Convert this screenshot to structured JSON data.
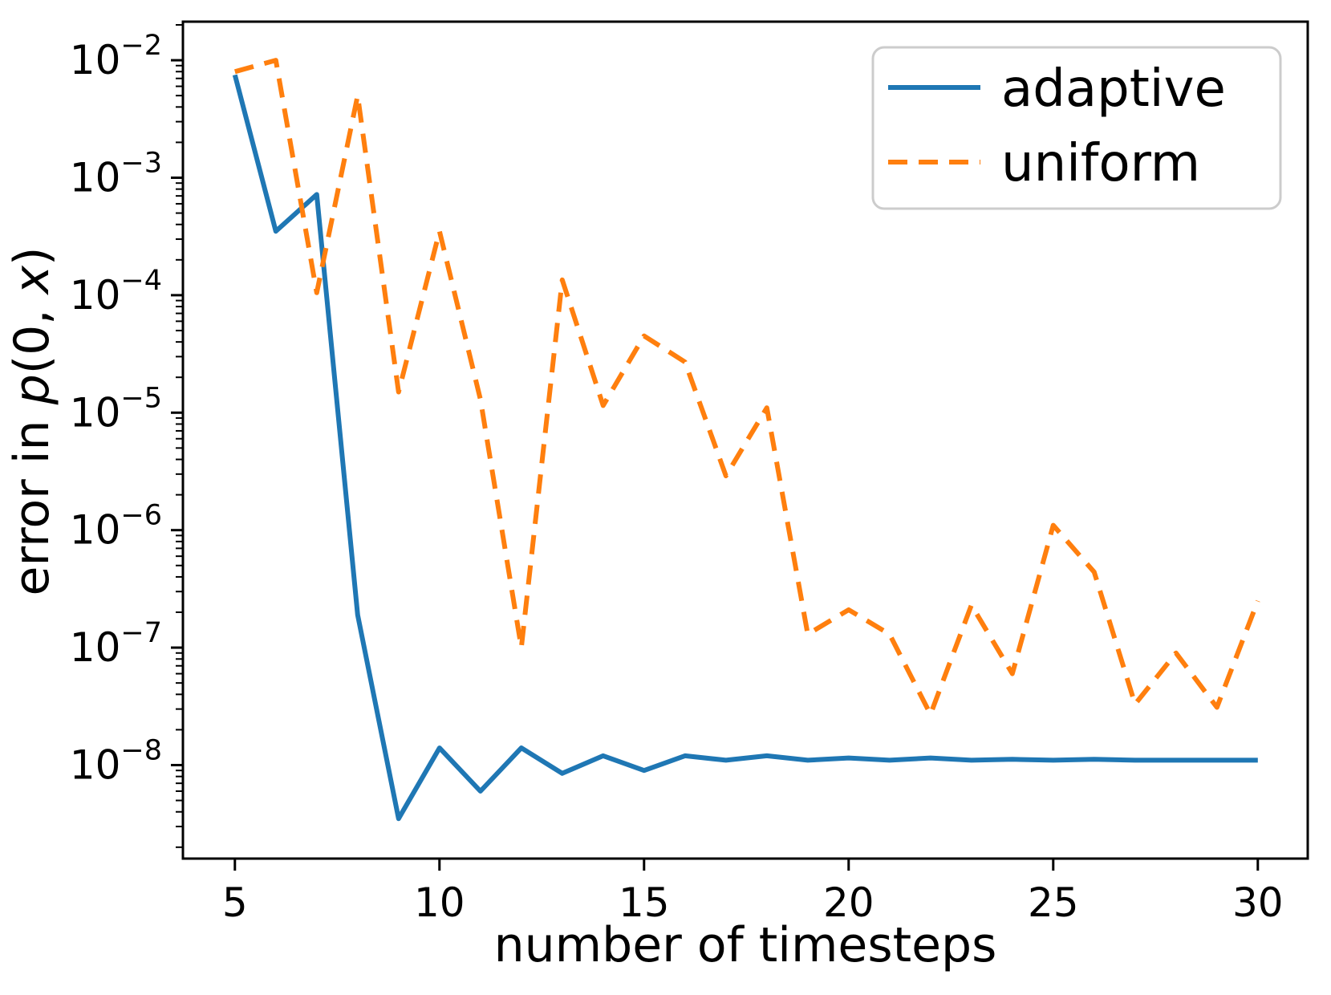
{
  "figure": {
    "background": "#ffffff",
    "frame_color": "#000000"
  },
  "chart_data": {
    "type": "line",
    "title": "",
    "xlabel": "number of timesteps",
    "ylabel": "error in p(0, x)",
    "ylabel_parts": [
      {
        "text": "error in ",
        "italic": false
      },
      {
        "text": "p",
        "italic": true
      },
      {
        "text": "(0, ",
        "italic": false
      },
      {
        "text": "x",
        "italic": true
      },
      {
        "text": ")",
        "italic": false
      }
    ],
    "yscale": "log",
    "grid": false,
    "legend_position": "upper right",
    "xlim": [
      3.73,
      31.22
    ],
    "ylim": [
      1.6e-09,
      0.0213
    ],
    "xticks": [
      5,
      10,
      15,
      20,
      25,
      30
    ],
    "ytick_exponents": [
      -2,
      -3,
      -4,
      -5,
      -6,
      -7,
      -8
    ],
    "x": [
      5,
      6,
      7,
      8,
      9,
      10,
      11,
      12,
      13,
      14,
      15,
      16,
      17,
      18,
      19,
      20,
      21,
      22,
      23,
      24,
      25,
      26,
      27,
      28,
      29,
      30
    ],
    "series": [
      {
        "name": "adaptive",
        "color": "#1f77b4",
        "line_style": "solid",
        "values": [
          0.0075,
          0.00035,
          0.00072,
          1.9e-07,
          3.5e-09,
          1.4e-08,
          6e-09,
          1.4e-08,
          8.5e-09,
          1.2e-08,
          9e-09,
          1.2e-08,
          1.1e-08,
          1.2e-08,
          1.1e-08,
          1.15e-08,
          1.1e-08,
          1.15e-08,
          1.1e-08,
          1.12e-08,
          1.1e-08,
          1.12e-08,
          1.1e-08,
          1.1e-08,
          1.1e-08,
          1.1e-08
        ]
      },
      {
        "name": "uniform",
        "color": "#ff7f0e",
        "line_style": "dashed",
        "values": [
          0.008,
          0.01,
          0.000105,
          0.005,
          1.5e-05,
          0.00035,
          1.3e-05,
          1e-07,
          0.000135,
          1.15e-05,
          4.5e-05,
          2.7e-05,
          2.9e-06,
          1.1e-05,
          1.3e-07,
          2.1e-07,
          1.3e-07,
          2.7e-08,
          2.3e-07,
          6e-08,
          1.1e-06,
          4.4e-07,
          3.3e-08,
          9e-08,
          3.1e-08,
          2.5e-07
        ]
      }
    ]
  },
  "legend": {
    "items": [
      {
        "label": "adaptive"
      },
      {
        "label": "uniform"
      }
    ]
  }
}
